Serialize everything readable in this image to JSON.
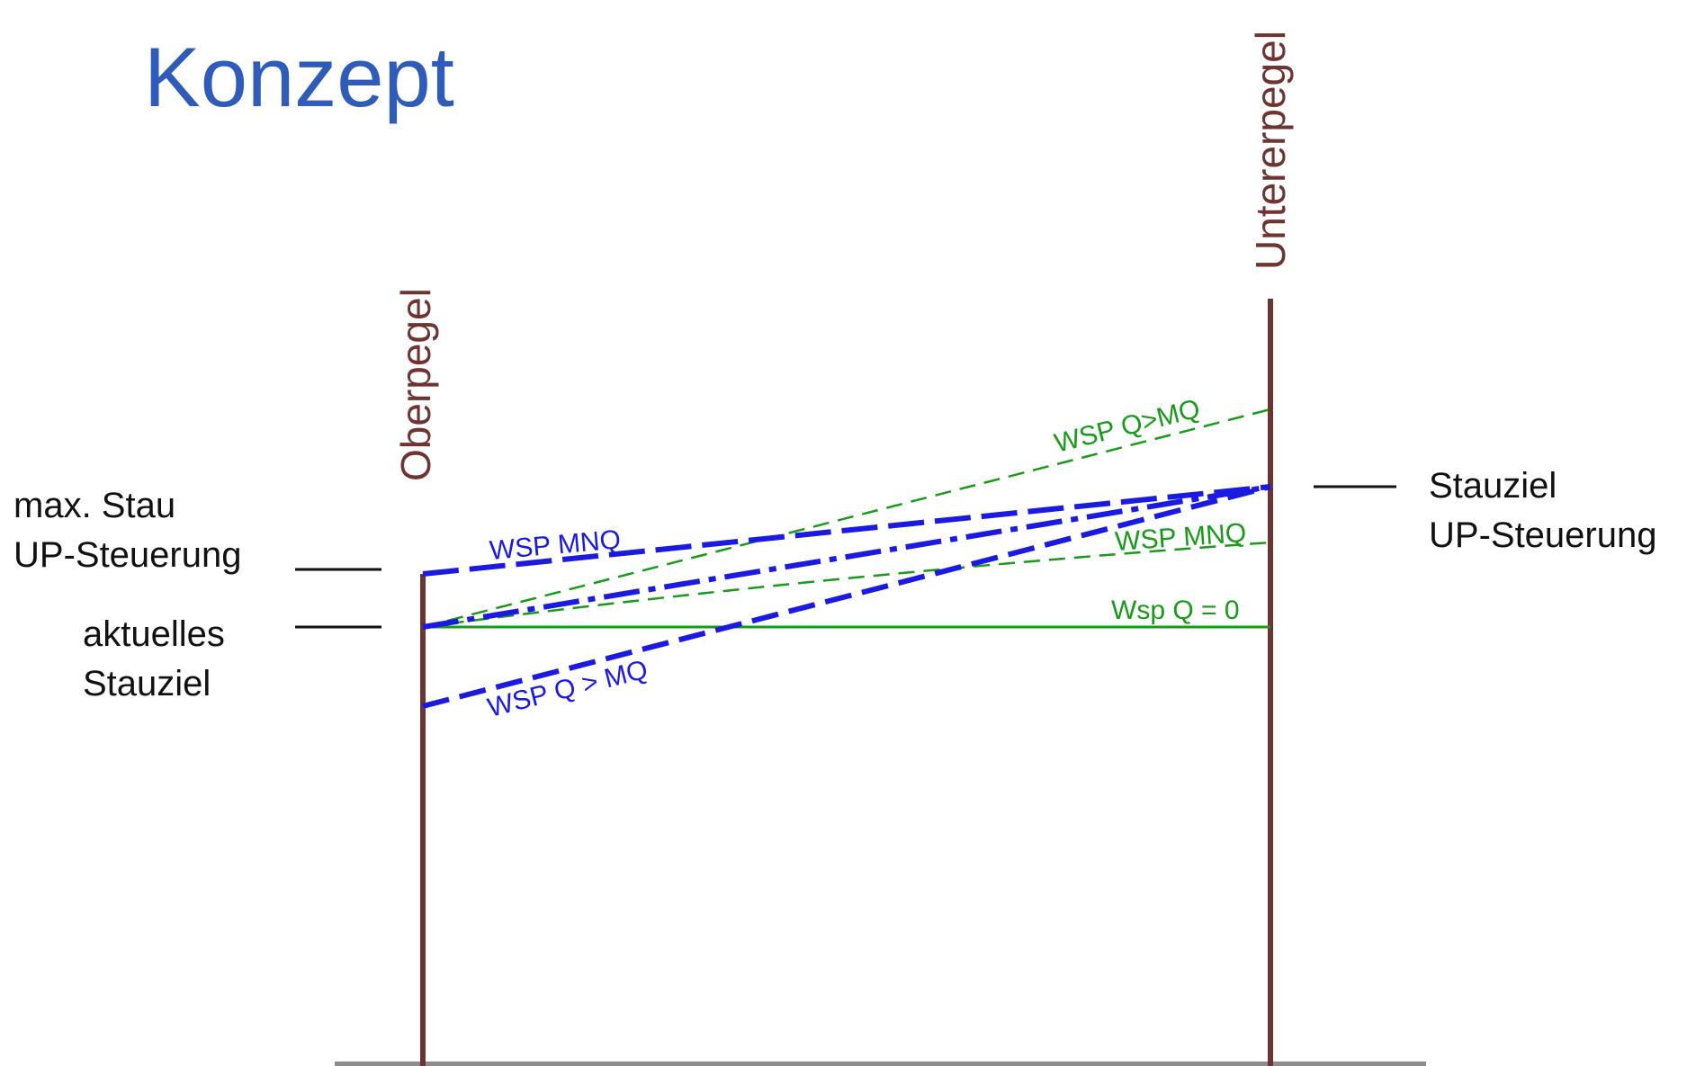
{
  "title": "Konzept",
  "colors": {
    "title": "#2f5cb8",
    "gauge": "#6e3431",
    "blue": "#1a1ae0",
    "green": "#1a9a1a",
    "ground": "#8c8c8c",
    "text": "#111111"
  },
  "gauges": {
    "upstream": "Oberpegel",
    "downstream": "Untererpegel"
  },
  "left_labels": {
    "max_stau": [
      "max. Stau",
      "UP-Steuerung"
    ],
    "aktuelles": [
      "aktuelles",
      "Stauziel"
    ]
  },
  "right_label": [
    "Stauziel",
    "UP-Steuerung"
  ],
  "line_labels": {
    "blue_mnq": "WSP MNQ",
    "blue_q_mq": "WSP Q > MQ",
    "green_q_mq": "WSP Q>MQ",
    "green_mnq": "WSP MNQ",
    "green_q0": "Wsp Q = 0"
  }
}
